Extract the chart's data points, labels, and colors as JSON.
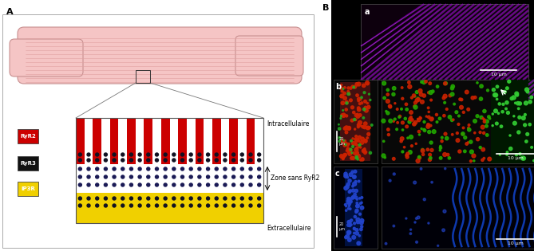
{
  "panel_A_label": "A",
  "panel_B_label": "B",
  "legend_items": [
    {
      "label": "RyR2",
      "color": "#cc0000"
    },
    {
      "label": "RyR3",
      "color": "#111111"
    },
    {
      "label": "IP3R",
      "color": "#f0d000"
    }
  ],
  "intracellulaire_label": "Intracellulaire",
  "extracellulaire_label": "Extracellulaire",
  "zone_label": "Zone sans RyR2",
  "scale_bar_label": "10 μm",
  "scale_bar_label_20": "20 μm",
  "cell_fill": "#f5c5c5",
  "cell_stroke": "#c89090",
  "stripe_red": "#cc0000",
  "stripe_white": "#ffffff",
  "zone_yellow_bg": "#f0d000",
  "dot_black": "#111122",
  "dot_blue": "#1a1a55",
  "bg_black": "#000000",
  "panel_bg": "#ffffff"
}
